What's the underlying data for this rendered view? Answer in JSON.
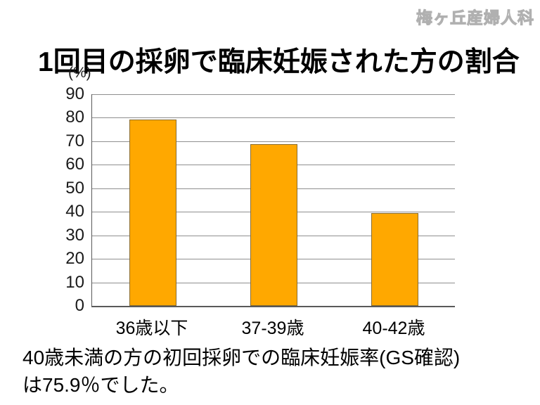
{
  "watermark": "梅ヶ丘産婦人科",
  "title": "1回目の採卵で臨床妊娠された方の割合",
  "chart_data": {
    "type": "bar",
    "title": "1回目の採卵で臨床妊娠された方の割合",
    "unit_label": "(%)",
    "categories": [
      "36歳以下",
      "37-39歳",
      "40-42歳"
    ],
    "values": [
      79.3,
      68.9,
      39.4
    ],
    "xlabel": "",
    "ylabel": "(%)",
    "ylim": [
      0,
      90
    ],
    "ytick_step": 10,
    "grid": true,
    "legend": "none",
    "bar_color": "#FFA800",
    "bar_border_color": "#8A6D2F",
    "gridline_color": "#8F8F8F",
    "axis_color": "#595959"
  },
  "caption": {
    "lines": [
      "40歳未満の方の初回採卵での臨床妊娠率(GS確認)",
      "は75.9％でした。"
    ]
  }
}
